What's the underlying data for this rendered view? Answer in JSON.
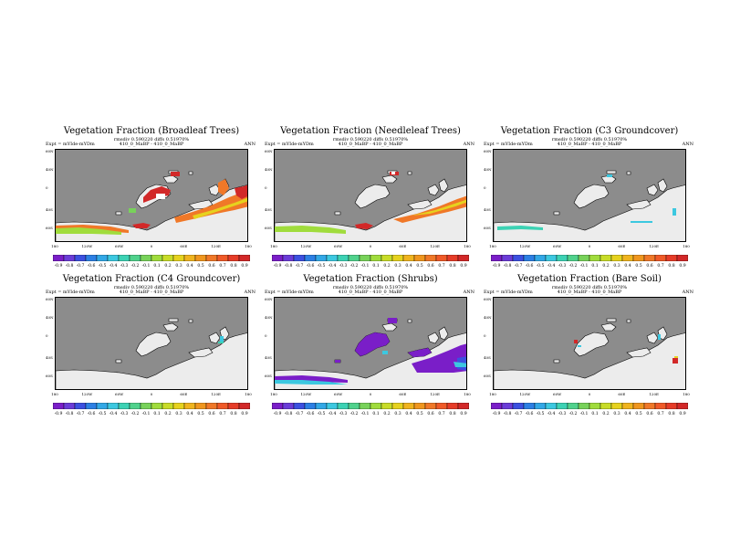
{
  "chart_data": [
    {
      "type": "heatmap",
      "title": "Vegetation Fraction (Broadleaf Trees)",
      "subtitle_1": "rmsdiv 0.590220 diffs 0.51970%",
      "subtitle_2": "410_0_MaBP - 410_0_MaBP",
      "experiment_label": "Expt = mYIde-mYDm",
      "season": "ANN",
      "pattern": "broadleaf",
      "lat_ticks": [
        "60N",
        "40N",
        "0",
        "40S",
        "60S"
      ],
      "lon_ticks": [
        "180",
        "120W",
        "60W",
        "0",
        "60E",
        "120E",
        "180"
      ],
      "colorbar_labels": [
        "-0.9",
        "-0.8",
        "-0.7",
        "-0.6",
        "-0.5",
        "-0.4",
        "-0.3",
        "-0.2",
        "-0.1",
        "0.1",
        "0.2",
        "0.3",
        "0.4",
        "0.5",
        "0.6",
        "0.7",
        "0.8",
        "0.9"
      ]
    },
    {
      "type": "heatmap",
      "title": "Vegetation Fraction (Needleleaf Trees)",
      "subtitle_1": "rmsdiv 0.590220 diffs 0.51970%",
      "subtitle_2": "410_0_MaBP - 410_0_MaBP",
      "experiment_label": "Expt = mYIde-mYDm",
      "season": "ANN",
      "pattern": "needleleaf",
      "lat_ticks": [
        "60N",
        "40N",
        "0",
        "40S",
        "60S"
      ],
      "lon_ticks": [
        "180",
        "120W",
        "60W",
        "0",
        "60E",
        "120E",
        "180"
      ],
      "colorbar_labels": [
        "-0.9",
        "-0.8",
        "-0.7",
        "-0.6",
        "-0.5",
        "-0.4",
        "-0.3",
        "-0.2",
        "-0.1",
        "0.1",
        "0.2",
        "0.3",
        "0.4",
        "0.5",
        "0.6",
        "0.7",
        "0.8",
        "0.9"
      ]
    },
    {
      "type": "heatmap",
      "title": "Vegetation Fraction (C3 Groundcover)",
      "subtitle_1": "rmsdiv 0.590220 diffs 0.51970%",
      "subtitle_2": "410_0_MaBP - 410_0_MaBP",
      "experiment_label": "Expt = mYIde-mYDm",
      "season": "ANN",
      "pattern": "c3",
      "lat_ticks": [
        "60N",
        "40N",
        "0",
        "40S",
        "60S"
      ],
      "lon_ticks": [
        "180",
        "120W",
        "60W",
        "0",
        "60E",
        "120E",
        "180"
      ],
      "colorbar_labels": [
        "-0.9",
        "-0.8",
        "-0.7",
        "-0.6",
        "-0.5",
        "-0.4",
        "-0.3",
        "-0.2",
        "-0.1",
        "0.1",
        "0.2",
        "0.3",
        "0.4",
        "0.5",
        "0.6",
        "0.7",
        "0.8",
        "0.9"
      ]
    },
    {
      "type": "heatmap",
      "title": "Vegetation Fraction (C4 Groundcover)",
      "subtitle_1": "rmsdiv 0.590220 diffs 0.51970%",
      "subtitle_2": "410_0_MaBP - 410_0_MaBP",
      "experiment_label": "Expt = mYIde-mYDm",
      "season": "ANN",
      "pattern": "c4",
      "lat_ticks": [
        "60N",
        "40N",
        "0",
        "40S",
        "60S"
      ],
      "lon_ticks": [
        "180",
        "120W",
        "60W",
        "0",
        "60E",
        "120E",
        "180"
      ],
      "colorbar_labels": [
        "-0.9",
        "-0.8",
        "-0.7",
        "-0.6",
        "-0.5",
        "-0.4",
        "-0.3",
        "-0.2",
        "-0.1",
        "0.1",
        "0.2",
        "0.3",
        "0.4",
        "0.5",
        "0.6",
        "0.7",
        "0.8",
        "0.9"
      ]
    },
    {
      "type": "heatmap",
      "title": "Vegetation Fraction (Shrubs)",
      "subtitle_1": "rmsdiv 0.590220 diffs 0.51970%",
      "subtitle_2": "410_0_MaBP - 410_0_MaBP",
      "experiment_label": "Expt = mYIde-mYDm",
      "season": "ANN",
      "pattern": "shrubs",
      "lat_ticks": [
        "60N",
        "40N",
        "0",
        "40S",
        "60S"
      ],
      "lon_ticks": [
        "180",
        "120W",
        "60W",
        "0",
        "60E",
        "120E",
        "180"
      ],
      "colorbar_labels": [
        "-0.9",
        "-0.8",
        "-0.7",
        "-0.6",
        "-0.5",
        "-0.4",
        "-0.3",
        "-0.2",
        "-0.1",
        "0.1",
        "0.2",
        "0.3",
        "0.4",
        "0.5",
        "0.6",
        "0.7",
        "0.8",
        "0.9"
      ]
    },
    {
      "type": "heatmap",
      "title": "Vegetation Fraction (Bare Soil)",
      "subtitle_1": "rmsdiv 0.590220 diffs 0.51970%",
      "subtitle_2": "410_0_MaBP - 410_0_MaBP",
      "experiment_label": "Expt = mYIde-mYDm",
      "season": "ANN",
      "pattern": "baresoil",
      "lat_ticks": [
        "60N",
        "40N",
        "0",
        "40S",
        "60S"
      ],
      "lon_ticks": [
        "180",
        "120W",
        "60W",
        "0",
        "60E",
        "120E",
        "180"
      ],
      "colorbar_labels": [
        "-0.9",
        "-0.8",
        "-0.7",
        "-0.6",
        "-0.5",
        "-0.4",
        "-0.3",
        "-0.2",
        "-0.1",
        "0.1",
        "0.2",
        "0.3",
        "0.4",
        "0.5",
        "0.6",
        "0.7",
        "0.8",
        "0.9"
      ]
    }
  ],
  "colors": {
    "ocean": "#8c8c8c",
    "land": "#ececec",
    "colorbar": [
      "#7a1ec8",
      "#6b3cd8",
      "#3c50e0",
      "#2c7fe4",
      "#32a8e6",
      "#3cc8e0",
      "#3cd2b4",
      "#50d28c",
      "#78d25a",
      "#a0dc3c",
      "#c8dc28",
      "#e6d21e",
      "#f0b41e",
      "#f0961e",
      "#f07828",
      "#f05a28",
      "#e63c28",
      "#d22828"
    ]
  }
}
